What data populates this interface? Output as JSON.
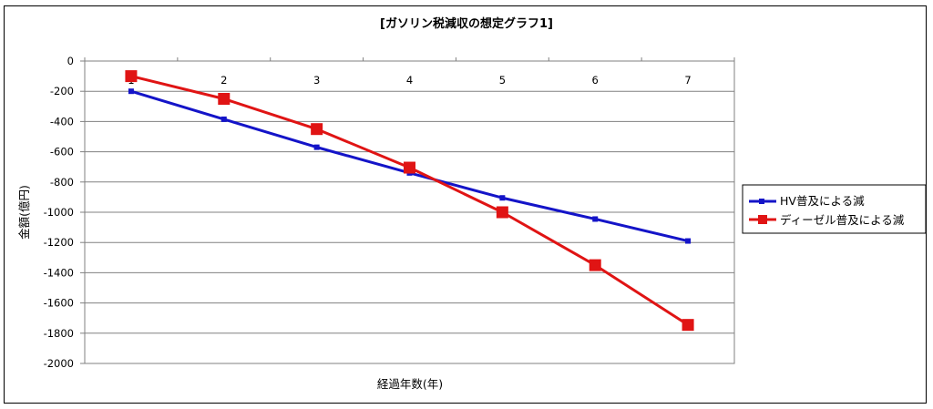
{
  "chart_data": {
    "type": "line",
    "title": "[ガソリン税減収の想定グラフ1]",
    "xlabel": "経過年数(年)",
    "ylabel": "金額(億円)",
    "categories": [
      "1",
      "2",
      "3",
      "4",
      "5",
      "6",
      "7"
    ],
    "ylim": [
      -2000,
      0
    ],
    "yticks": [
      0,
      -200,
      -400,
      -600,
      -800,
      -1000,
      -1200,
      -1400,
      -1600,
      -1800,
      -2000
    ],
    "grid": true,
    "legend_position": "right",
    "series": [
      {
        "name": "HV普及による減",
        "color": "#1414c8",
        "marker": "small-square",
        "values": [
          -200,
          -385,
          -570,
          -740,
          -905,
          -1045,
          -1190
        ]
      },
      {
        "name": "ディーゼル普及による減",
        "color": "#e01414",
        "marker": "large-square",
        "values": [
          -100,
          -250,
          -450,
          -705,
          -1000,
          -1350,
          -1745
        ]
      }
    ]
  }
}
